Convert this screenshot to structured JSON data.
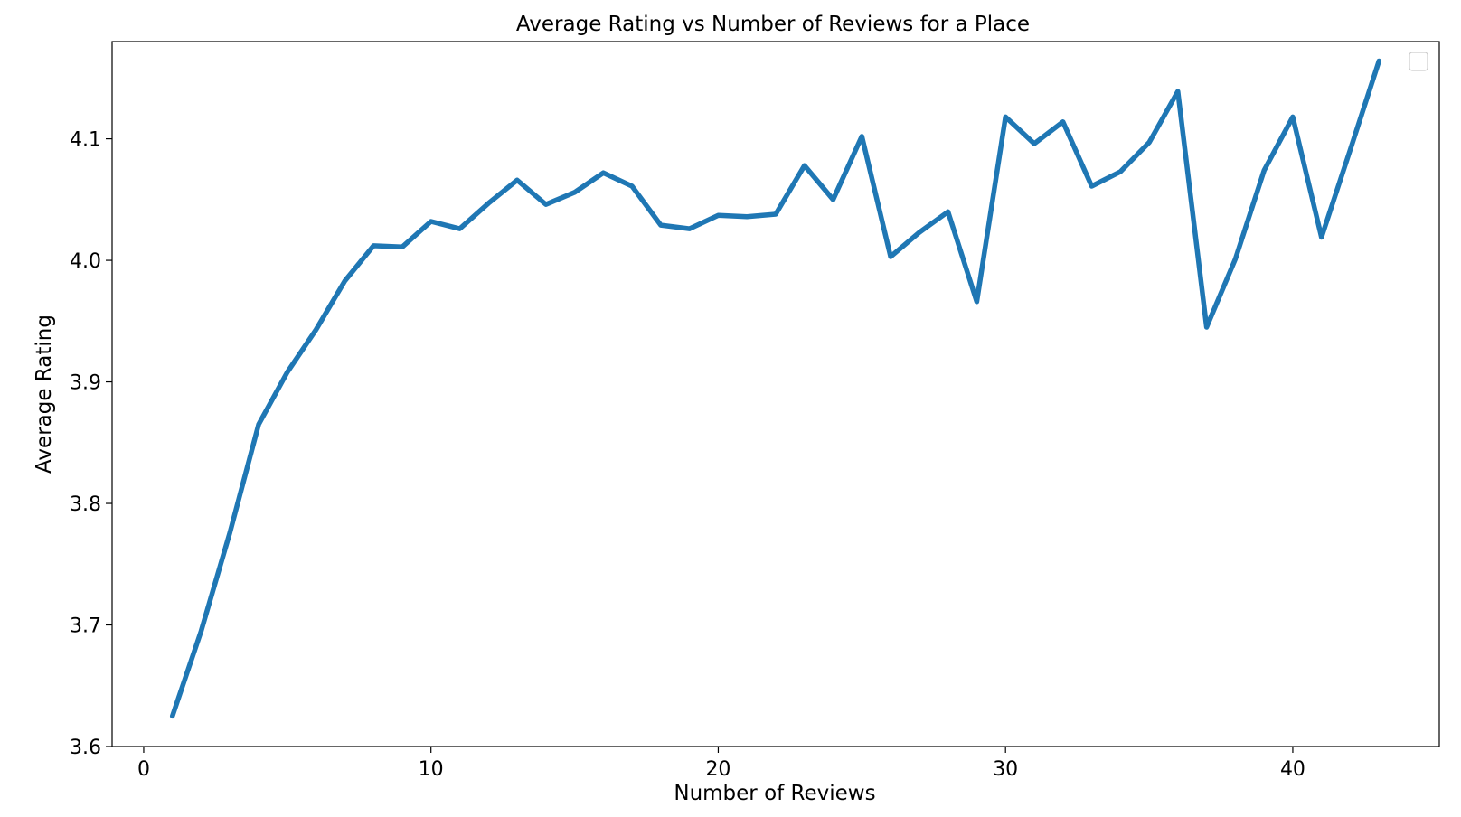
{
  "chart_data": {
    "type": "line",
    "title": "Average Rating vs Number of Reviews for a Place",
    "xlabel": "Number of Reviews",
    "ylabel": "Average Rating",
    "xlim": [
      -1.1,
      45.1
    ],
    "ylim": [
      3.6,
      4.18
    ],
    "xticks": [
      0,
      10,
      20,
      30,
      40
    ],
    "xtick_labels": [
      "0",
      "10",
      "20",
      "30",
      "40"
    ],
    "yticks": [
      3.6,
      3.7,
      3.8,
      3.9,
      4.0,
      4.1
    ],
    "ytick_labels": [
      "3.6",
      "3.7",
      "3.8",
      "3.9",
      "4.0",
      "4.1"
    ],
    "grid": false,
    "legend": {
      "position": "top-right",
      "entries": []
    },
    "colors": {
      "line": "#1f77b4",
      "axes": "#000000",
      "background": "#ffffff"
    },
    "x": [
      1,
      2,
      3,
      4,
      5,
      6,
      7,
      8,
      9,
      10,
      11,
      12,
      13,
      14,
      15,
      16,
      17,
      18,
      19,
      20,
      21,
      22,
      23,
      24,
      25,
      26,
      27,
      28,
      29,
      30,
      31,
      32,
      33,
      34,
      35,
      36,
      37,
      38,
      39,
      40,
      41,
      42,
      43
    ],
    "series": [
      {
        "values": [
          3.625,
          3.695,
          3.776,
          3.865,
          3.908,
          3.943,
          3.983,
          4.012,
          4.011,
          4.032,
          4.026,
          4.047,
          4.066,
          4.046,
          4.056,
          4.072,
          4.061,
          4.029,
          4.026,
          4.037,
          4.036,
          4.038,
          4.078,
          4.05,
          4.102,
          4.003,
          4.023,
          4.04,
          3.966,
          4.118,
          4.096,
          4.114,
          4.061,
          4.073,
          4.097,
          4.139,
          3.945,
          4.001,
          4.074,
          4.118,
          4.019,
          4.091,
          4.164
        ]
      }
    ]
  }
}
